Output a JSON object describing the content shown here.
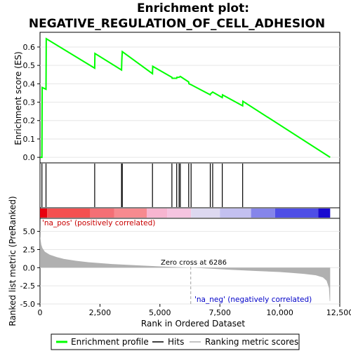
{
  "chart_data": [
    {
      "type": "line",
      "title": [
        "Enrichment plot:",
        "NEGATIVE_REGULATION_OF_CELL_ADHESION"
      ],
      "ylabel": "Enrichment score (ES)",
      "xlim": [
        0,
        12500
      ],
      "ylim": [
        -0.03,
        0.68
      ],
      "yticks": [
        0.0,
        0.1,
        0.2,
        0.3,
        0.4,
        0.5,
        0.6
      ],
      "ytick_labels": [
        "0.0",
        "0.1",
        "0.2",
        "0.3",
        "0.4",
        "0.5",
        "0.6"
      ],
      "grid": true,
      "color": "#00ff00",
      "series": [
        {
          "name": "Enrichment profile",
          "x": [
            0,
            80,
            90,
            250,
            260,
            2280,
            2290,
            3400,
            3410,
            3430,
            4690,
            4700,
            5500,
            5510,
            5700,
            5710,
            5800,
            5850,
            6200,
            6210,
            6300,
            7100,
            7110,
            7200,
            7600,
            7610,
            8450,
            8460,
            12100
          ],
          "y": [
            0.0,
            0.0,
            0.38,
            0.37,
            0.645,
            0.485,
            0.565,
            0.475,
            0.525,
            0.575,
            0.455,
            0.495,
            0.435,
            0.43,
            0.43,
            0.435,
            0.435,
            0.44,
            0.41,
            0.4,
            0.395,
            0.34,
            0.345,
            0.355,
            0.325,
            0.34,
            0.28,
            0.305,
            0.0
          ]
        }
      ]
    },
    {
      "type": "hits",
      "xlim": [
        0,
        12500
      ],
      "hits": [
        80,
        250,
        2280,
        3400,
        3430,
        4690,
        5500,
        5700,
        5800,
        5850,
        6200,
        6300,
        7100,
        7200,
        7600,
        8450
      ]
    },
    {
      "type": "heatbar",
      "xlim": [
        0,
        12500
      ],
      "segments": [
        {
          "x0": 0,
          "x1": 300,
          "color": "#e8000f"
        },
        {
          "x0": 300,
          "x1": 2100,
          "color": "#f45050"
        },
        {
          "x0": 2100,
          "x1": 3100,
          "color": "#f46f75"
        },
        {
          "x0": 3100,
          "x1": 4450,
          "color": "#f78a8f"
        },
        {
          "x0": 4450,
          "x1": 5300,
          "color": "#f7b5d0"
        },
        {
          "x0": 5300,
          "x1": 6300,
          "color": "#f5c4e0"
        },
        {
          "x0": 6300,
          "x1": 7500,
          "color": "#ddd8f0"
        },
        {
          "x0": 7500,
          "x1": 8800,
          "color": "#c3c0f0"
        },
        {
          "x0": 8800,
          "x1": 9800,
          "color": "#8585ea"
        },
        {
          "x0": 9800,
          "x1": 11600,
          "color": "#4e4ee6"
        },
        {
          "x0": 11600,
          "x1": 12100,
          "color": "#1a0ad0"
        }
      ]
    },
    {
      "type": "area",
      "xlabel": "Rank in Ordered Dataset",
      "ylabel": "Ranked list metric (PreRanked)",
      "xlim": [
        0,
        12500
      ],
      "ylim": [
        -5,
        6.8
      ],
      "yticks": [
        -5.0,
        -2.5,
        0.0,
        2.5,
        5.0
      ],
      "ytick_labels": [
        "-5.0",
        "-2.5",
        "0.0",
        "2.5",
        "5.0"
      ],
      "xticks": [
        0,
        2500,
        5000,
        7500,
        10000,
        12500
      ],
      "xtick_labels": [
        "0",
        "2,500",
        "5,000",
        "7,500",
        "10,000",
        "12,500"
      ],
      "grid": true,
      "color": "#b0b0b0",
      "series": [
        {
          "name": "Ranking metric scores",
          "x": [
            0,
            10,
            50,
            100,
            200,
            400,
            700,
            1000,
            1500,
            2000,
            3000,
            4000,
            5000,
            6000,
            6286,
            7000,
            8000,
            9000,
            10000,
            10500,
            11000,
            11500,
            11800,
            11950,
            12050,
            12080,
            12100
          ],
          "y": [
            6.0,
            4.2,
            3.2,
            2.7,
            2.2,
            1.8,
            1.45,
            1.2,
            0.95,
            0.75,
            0.5,
            0.33,
            0.18,
            0.04,
            0.0,
            -0.12,
            -0.3,
            -0.45,
            -0.6,
            -0.72,
            -0.85,
            -1.05,
            -1.35,
            -1.8,
            -2.8,
            -4.6,
            -4.6
          ]
        }
      ],
      "annotations": [
        "'na_pos' (positively correlated)",
        "Zero cross at 6286",
        "'na_neg' (negatively correlated)"
      ],
      "zero_cross": 6286
    }
  ],
  "legend": {
    "items": [
      "Enrichment profile",
      "Hits",
      "Ranking metric scores"
    ],
    "colors": [
      "#00ff00",
      "#000000",
      "#b0b0b0"
    ]
  }
}
